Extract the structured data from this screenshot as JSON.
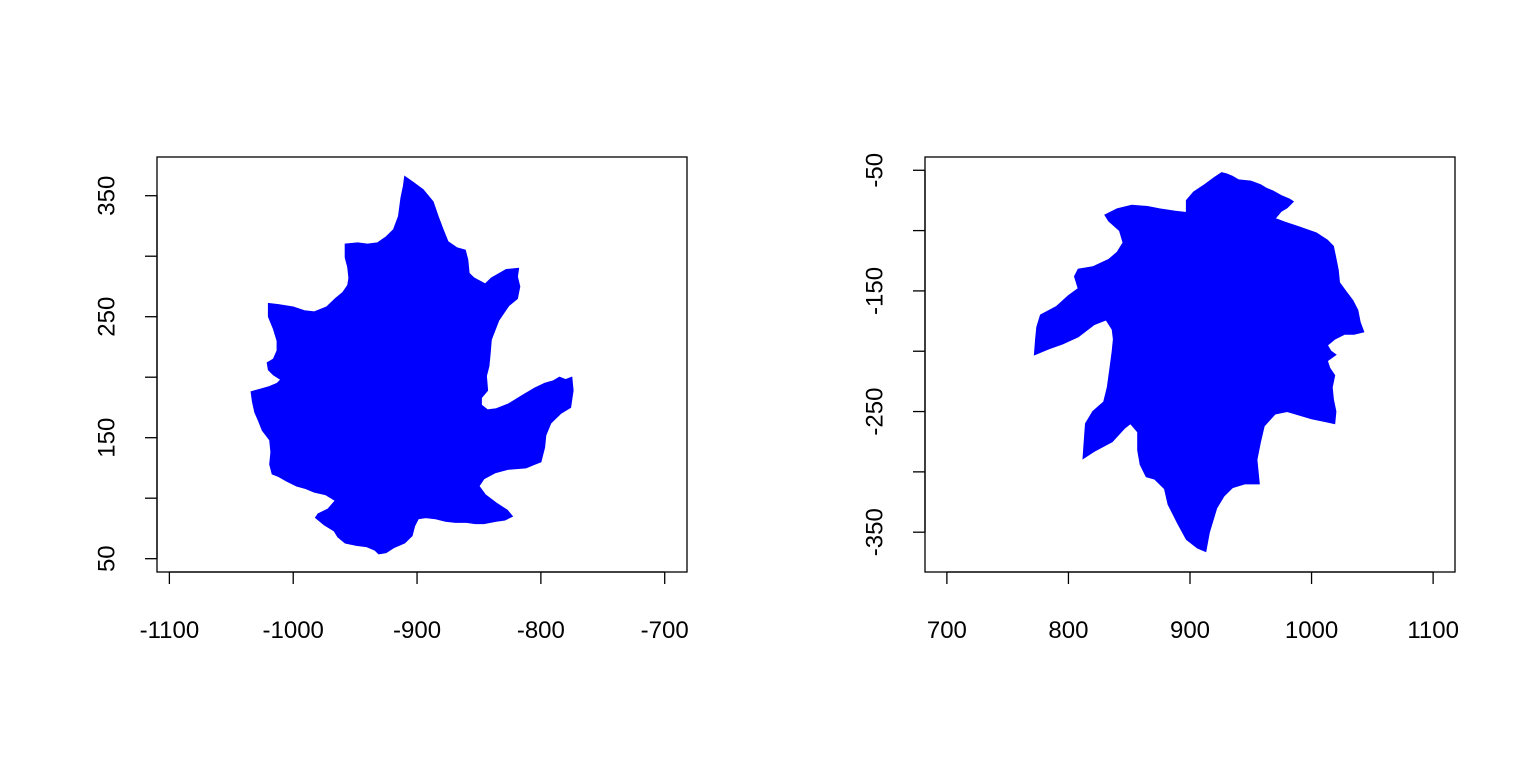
{
  "chart_data": [
    {
      "type": "area",
      "title": "",
      "xlabel": "",
      "ylabel": "",
      "xlim": [
        -1110,
        -682
      ],
      "ylim": [
        39,
        382
      ],
      "x_ticks": [
        -1100,
        -1000,
        -900,
        -800,
        -700
      ],
      "y_ticks": [
        50,
        150,
        250,
        350
      ],
      "y_ticks_minor": [
        100,
        200,
        300
      ],
      "x_tick_labels": [
        "-1100",
        "-1000",
        "-900",
        "-800",
        "-700"
      ],
      "y_tick_labels": [
        "50",
        "150",
        "250",
        "350"
      ],
      "fill_color": "#0000ff",
      "grid": false,
      "legend": "none",
      "series": [
        {
          "points": [
            [
              -910,
              366
            ],
            [
              -903,
              361
            ],
            [
              -895,
              355
            ],
            [
              -887,
              345
            ],
            [
              -883,
              333
            ],
            [
              -879,
              322
            ],
            [
              -875,
              312
            ],
            [
              -868,
              307
            ],
            [
              -861,
              305
            ],
            [
              -859,
              297
            ],
            [
              -858,
              286
            ],
            [
              -854,
              282
            ],
            [
              -845,
              277
            ],
            [
              -840,
              282
            ],
            [
              -828,
              289
            ],
            [
              -818,
              290
            ],
            [
              -819,
              283
            ],
            [
              -817,
              275
            ],
            [
              -819,
              265
            ],
            [
              -826,
              259
            ],
            [
              -834,
              247
            ],
            [
              -840,
              231
            ],
            [
              -841,
              219
            ],
            [
              -842,
              209
            ],
            [
              -844,
              201
            ],
            [
              -843,
              189
            ],
            [
              -848,
              183
            ],
            [
              -848,
              177
            ],
            [
              -843,
              173
            ],
            [
              -836,
              174
            ],
            [
              -826,
              178
            ],
            [
              -815,
              185
            ],
            [
              -805,
              191
            ],
            [
              -797,
              195
            ],
            [
              -790,
              197
            ],
            [
              -785,
              200
            ],
            [
              -780,
              198
            ],
            [
              -775,
              200
            ],
            [
              -774,
              189
            ],
            [
              -776,
              175
            ],
            [
              -784,
              170
            ],
            [
              -792,
              162
            ],
            [
              -796,
              152
            ],
            [
              -797,
              142
            ],
            [
              -800,
              130
            ],
            [
              -805,
              128
            ],
            [
              -812,
              125
            ],
            [
              -826,
              124
            ],
            [
              -837,
              121
            ],
            [
              -846,
              116
            ],
            [
              -850,
              110
            ],
            [
              -845,
              103
            ],
            [
              -836,
              96
            ],
            [
              -827,
              90
            ],
            [
              -823,
              85
            ],
            [
              -829,
              82
            ],
            [
              -836,
              81
            ],
            [
              -846,
              79
            ],
            [
              -853,
              79
            ],
            [
              -860,
              80
            ],
            [
              -869,
              80
            ],
            [
              -877,
              81
            ],
            [
              -885,
              83
            ],
            [
              -893,
              84
            ],
            [
              -899,
              83
            ],
            [
              -902,
              77
            ],
            [
              -904,
              69
            ],
            [
              -910,
              63
            ],
            [
              -919,
              59
            ],
            [
              -925,
              55
            ],
            [
              -931,
              54
            ],
            [
              -934,
              57
            ],
            [
              -941,
              60
            ],
            [
              -949,
              61
            ],
            [
              -958,
              63
            ],
            [
              -964,
              68
            ],
            [
              -967,
              73
            ],
            [
              -975,
              78
            ],
            [
              -982,
              84
            ],
            [
              -980,
              87
            ],
            [
              -972,
              91
            ],
            [
              -966,
              98
            ],
            [
              -974,
              103
            ],
            [
              -983,
              105
            ],
            [
              -990,
              108
            ],
            [
              -997,
              110
            ],
            [
              -1005,
              114
            ],
            [
              -1012,
              118
            ],
            [
              -1017,
              120
            ],
            [
              -1019,
              128
            ],
            [
              -1018,
              138
            ],
            [
              -1019,
              148
            ],
            [
              -1025,
              156
            ],
            [
              -1028,
              164
            ],
            [
              -1031,
              171
            ],
            [
              -1033,
              180
            ],
            [
              -1034,
              188
            ],
            [
              -1027,
              190
            ],
            [
              -1020,
              192
            ],
            [
              -1013,
              195
            ],
            [
              -1010,
              198
            ],
            [
              -1016,
              202
            ],
            [
              -1020,
              206
            ],
            [
              -1021,
              212
            ],
            [
              -1016,
              215
            ],
            [
              -1013,
              222
            ],
            [
              -1013,
              230
            ],
            [
              -1016,
              240
            ],
            [
              -1020,
              250
            ],
            [
              -1020,
              261
            ],
            [
              -1012,
              260
            ],
            [
              -1000,
              258
            ],
            [
              -991,
              255
            ],
            [
              -983,
              254
            ],
            [
              -973,
              258
            ],
            [
              -966,
              265
            ],
            [
              -960,
              270
            ],
            [
              -956,
              276
            ],
            [
              -955,
              282
            ],
            [
              -956,
              291
            ],
            [
              -958,
              299
            ],
            [
              -958,
              310
            ],
            [
              -948,
              311
            ],
            [
              -940,
              310
            ],
            [
              -932,
              311
            ],
            [
              -925,
              316
            ],
            [
              -919,
              322
            ],
            [
              -915,
              333
            ],
            [
              -913,
              348
            ],
            [
              -911,
              358
            ]
          ]
        }
      ]
    },
    {
      "type": "area",
      "title": "",
      "xlabel": "",
      "ylabel": "",
      "xlim": [
        682,
        1118
      ],
      "ylim": [
        -383,
        -39
      ],
      "x_ticks": [
        700,
        800,
        900,
        1000,
        1100
      ],
      "y_ticks": [
        -50,
        -150,
        -250,
        -350
      ],
      "y_ticks_minor": [
        -100,
        -200,
        -300
      ],
      "x_tick_labels": [
        "700",
        "800",
        "900",
        "1000",
        "1100"
      ],
      "y_tick_labels": [
        "-50",
        "-150",
        "-250",
        "-350"
      ],
      "fill_color": "#0000ff",
      "grid": false,
      "legend": "none",
      "series": [
        {
          "points": [
            [
              930,
              -53
            ],
            [
              935,
              -55
            ],
            [
              940,
              -58
            ],
            [
              950,
              -59
            ],
            [
              958,
              -62
            ],
            [
              963,
              -65
            ],
            [
              968,
              -67
            ],
            [
              975,
              -71
            ],
            [
              982,
              -74
            ],
            [
              985,
              -76
            ],
            [
              980,
              -81
            ],
            [
              975,
              -84
            ],
            [
              970,
              -90
            ],
            [
              978,
              -93
            ],
            [
              990,
              -97
            ],
            [
              1004,
              -102
            ],
            [
              1013,
              -108
            ],
            [
              1018,
              -113
            ],
            [
              1020,
              -123
            ],
            [
              1022,
              -133
            ],
            [
              1023,
              -143
            ],
            [
              1028,
              -150
            ],
            [
              1034,
              -158
            ],
            [
              1038,
              -166
            ],
            [
              1040,
              -176
            ],
            [
              1043,
              -184
            ],
            [
              1035,
              -186
            ],
            [
              1027,
              -186
            ],
            [
              1019,
              -190
            ],
            [
              1013,
              -195
            ],
            [
              1016,
              -200
            ],
            [
              1020,
              -203
            ],
            [
              1013,
              -208
            ],
            [
              1015,
              -214
            ],
            [
              1019,
              -220
            ],
            [
              1017,
              -230
            ],
            [
              1018,
              -240
            ],
            [
              1020,
              -250
            ],
            [
              1019,
              -260
            ],
            [
              1010,
              -258
            ],
            [
              1000,
              -256
            ],
            [
              990,
              -253
            ],
            [
              980,
              -250
            ],
            [
              970,
              -252
            ],
            [
              961,
              -262
            ],
            [
              958,
              -275
            ],
            [
              955,
              -290
            ],
            [
              957,
              -310
            ],
            [
              945,
              -310
            ],
            [
              935,
              -313
            ],
            [
              928,
              -320
            ],
            [
              922,
              -330
            ],
            [
              916,
              -350
            ],
            [
              913,
              -366
            ],
            [
              906,
              -363
            ],
            [
              897,
              -356
            ],
            [
              890,
              -343
            ],
            [
              882,
              -327
            ],
            [
              879,
              -314
            ],
            [
              871,
              -306
            ],
            [
              864,
              -304
            ],
            [
              859,
              -294
            ],
            [
              857,
              -282
            ],
            [
              857,
              -267
            ],
            [
              851,
              -260
            ],
            [
              846,
              -264
            ],
            [
              836,
              -275
            ],
            [
              821,
              -283
            ],
            [
              812,
              -289
            ],
            [
              813,
              -275
            ],
            [
              814,
              -260
            ],
            [
              820,
              -250
            ],
            [
              829,
              -242
            ],
            [
              832,
              -230
            ],
            [
              834,
              -215
            ],
            [
              836,
              -200
            ],
            [
              837,
              -190
            ],
            [
              836,
              -182
            ],
            [
              831,
              -174
            ],
            [
              821,
              -178
            ],
            [
              808,
              -188
            ],
            [
              795,
              -194
            ],
            [
              784,
              -198
            ],
            [
              772,
              -203
            ],
            [
              773,
              -190
            ],
            [
              774,
              -180
            ],
            [
              777,
              -170
            ],
            [
              790,
              -163
            ],
            [
              800,
              -154
            ],
            [
              808,
              -148
            ],
            [
              805,
              -138
            ],
            [
              808,
              -132
            ],
            [
              820,
              -130
            ],
            [
              833,
              -124
            ],
            [
              840,
              -118
            ],
            [
              845,
              -110
            ],
            [
              842,
              -100
            ],
            [
              833,
              -92
            ],
            [
              830,
              -87
            ],
            [
              840,
              -82
            ],
            [
              852,
              -79
            ],
            [
              865,
              -80
            ],
            [
              875,
              -82
            ],
            [
              888,
              -84
            ],
            [
              897,
              -85
            ],
            [
              897,
              -75
            ],
            [
              903,
              -68
            ],
            [
              912,
              -62
            ],
            [
              920,
              -56
            ],
            [
              926,
              -52
            ]
          ]
        }
      ]
    }
  ]
}
